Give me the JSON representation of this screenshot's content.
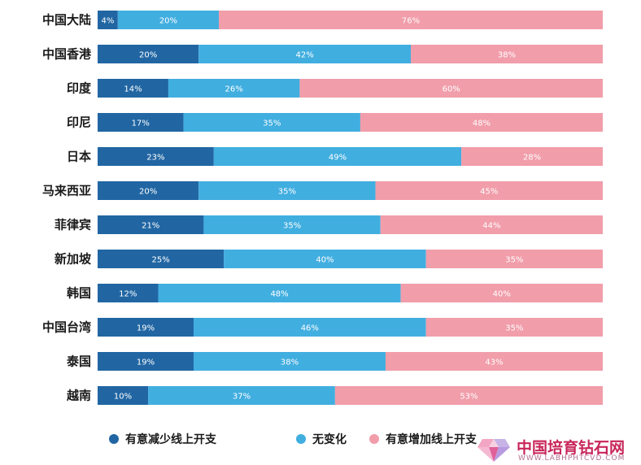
{
  "chart_data": {
    "type": "bar",
    "orientation": "horizontal",
    "stacked": true,
    "percent": true,
    "categories": [
      "中国大陆",
      "中国香港",
      "印度",
      "印尼",
      "日本",
      "马来西亚",
      "菲律宾",
      "新加坡",
      "韩国",
      "中国台湾",
      "泰国",
      "越南"
    ],
    "series": [
      {
        "name": "有意减少线上开支",
        "color": "#2166a3",
        "values": [
          4,
          20,
          14,
          17,
          23,
          20,
          21,
          25,
          12,
          19,
          19,
          10
        ]
      },
      {
        "name": "无变化",
        "color": "#41aee0",
        "values": [
          20,
          42,
          26,
          35,
          49,
          35,
          35,
          40,
          48,
          46,
          38,
          37
        ]
      },
      {
        "name": "有意增加线上开支",
        "color": "#f19daa",
        "values": [
          76,
          38,
          60,
          48,
          28,
          45,
          44,
          35,
          40,
          35,
          43,
          53
        ]
      }
    ],
    "value_suffix": "%",
    "legend_position": "bottom",
    "grid": false
  },
  "watermark": {
    "title": "中国培育钻石网",
    "url": "WWW.LABHPHTCVD.COM"
  }
}
